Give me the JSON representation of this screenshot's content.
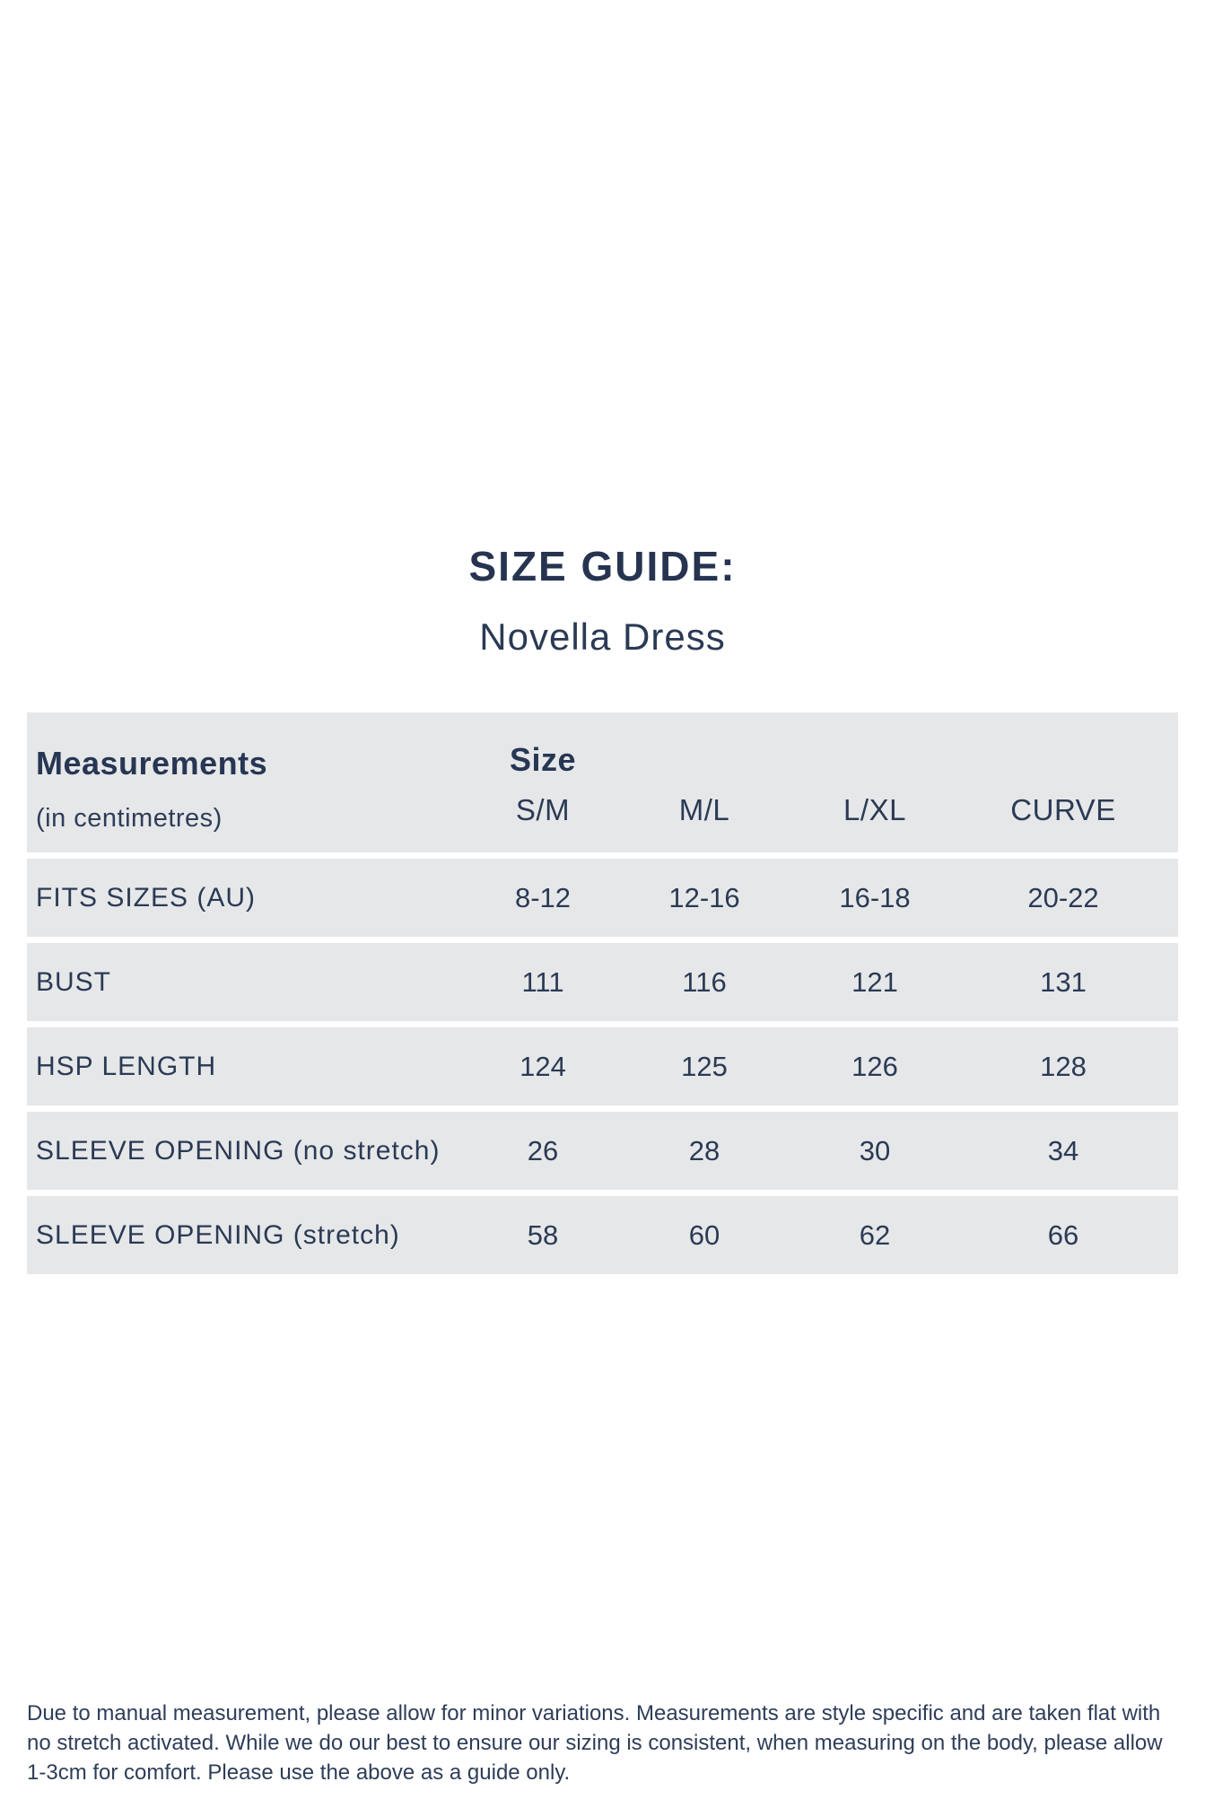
{
  "page": {
    "title": "SIZE GUIDE:",
    "subtitle": "Novella Dress"
  },
  "table": {
    "measurements_header": "Measurements",
    "measurements_subheader": "(in centimetres)",
    "size_header": "Size",
    "size_columns": [
      "S/M",
      "M/L",
      "L/XL",
      "CURVE"
    ],
    "rows": [
      {
        "label": "FITS SIZES (AU)",
        "values": [
          "8-12",
          "12-16",
          "16-18",
          "20-22"
        ]
      },
      {
        "label": "BUST",
        "values": [
          "111",
          "116",
          "121",
          "131"
        ]
      },
      {
        "label": "HSP LENGTH",
        "values": [
          "124",
          "125",
          "126",
          "128"
        ]
      },
      {
        "label": "SLEEVE OPENING (no stretch)",
        "values": [
          "26",
          "28",
          "30",
          "34"
        ]
      },
      {
        "label": "SLEEVE OPENING (stretch)",
        "values": [
          "58",
          "60",
          "62",
          "66"
        ]
      }
    ]
  },
  "footnote": {
    "lines": [
      "Due to manual measurement, please allow for minor variations. Measurements are style specific and are taken flat with",
      "no stretch activated. While we do our best to ensure our sizing is consistent, when measuring on the body, please allow",
      "1-3cm for comfort. Please use the above as a guide only."
    ]
  },
  "colors": {
    "text_navy": "#2b3a54",
    "row_background": "#e6e7e9",
    "page_background": "#ffffff"
  }
}
